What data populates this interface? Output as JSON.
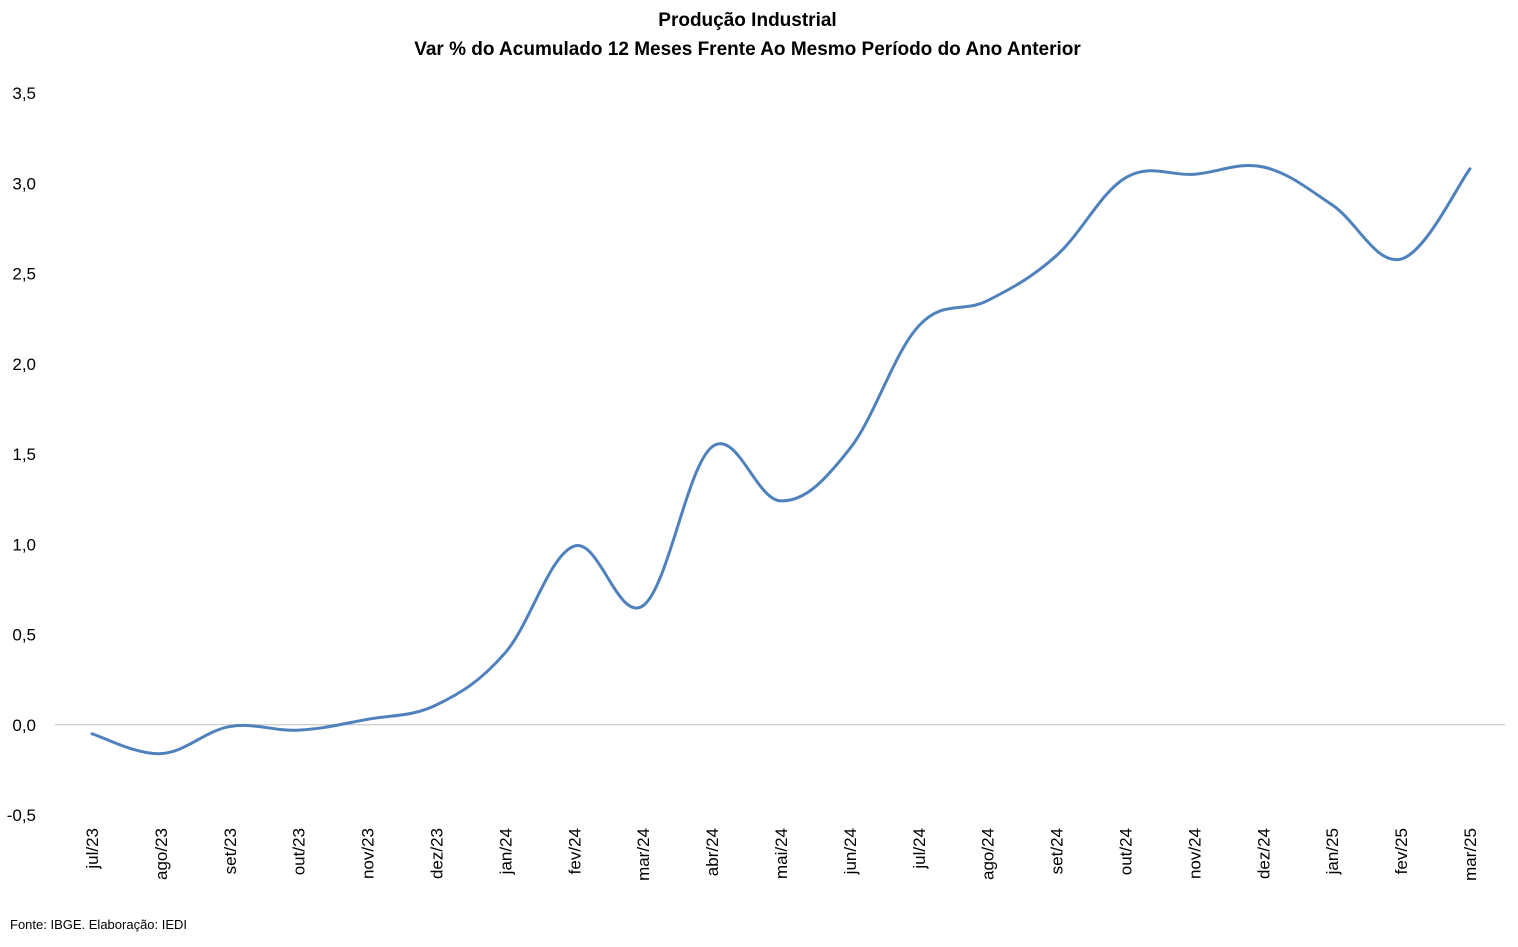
{
  "chart_data": {
    "type": "line",
    "title": "Produção Industrial",
    "subtitle": "Var % do Acumulado 12 Meses Frente Ao Mesmo Período do Ano Anterior",
    "xlabel": "",
    "ylabel": "",
    "categories": [
      "jul/23",
      "ago/23",
      "set/23",
      "out/23",
      "nov/23",
      "dez/23",
      "jan/24",
      "fev/24",
      "mar/24",
      "abr/24",
      "mai/24",
      "jun/24",
      "jul/24",
      "ago/24",
      "set/24",
      "out/24",
      "nov/24",
      "dez/24",
      "jan/25",
      "fev/25",
      "mar/25"
    ],
    "series": [
      {
        "values": [
          -0.05,
          -0.16,
          -0.01,
          -0.03,
          0.03,
          0.11,
          0.4,
          0.99,
          0.66,
          1.54,
          1.24,
          1.53,
          2.21,
          2.35,
          2.6,
          3.03,
          3.05,
          3.09,
          2.88,
          2.58,
          3.08
        ],
        "color": "#4F81BD"
      }
    ],
    "yticks": [
      "3,5",
      "3,0",
      "2,5",
      "2,0",
      "1,5",
      "1,0",
      "0,5",
      "0,0",
      "-0,5"
    ],
    "ylim": [
      -0.5,
      3.5
    ],
    "grid": false,
    "legend": "none"
  },
  "footnote": "Fonte: IBGE. Elaboração: IEDI"
}
